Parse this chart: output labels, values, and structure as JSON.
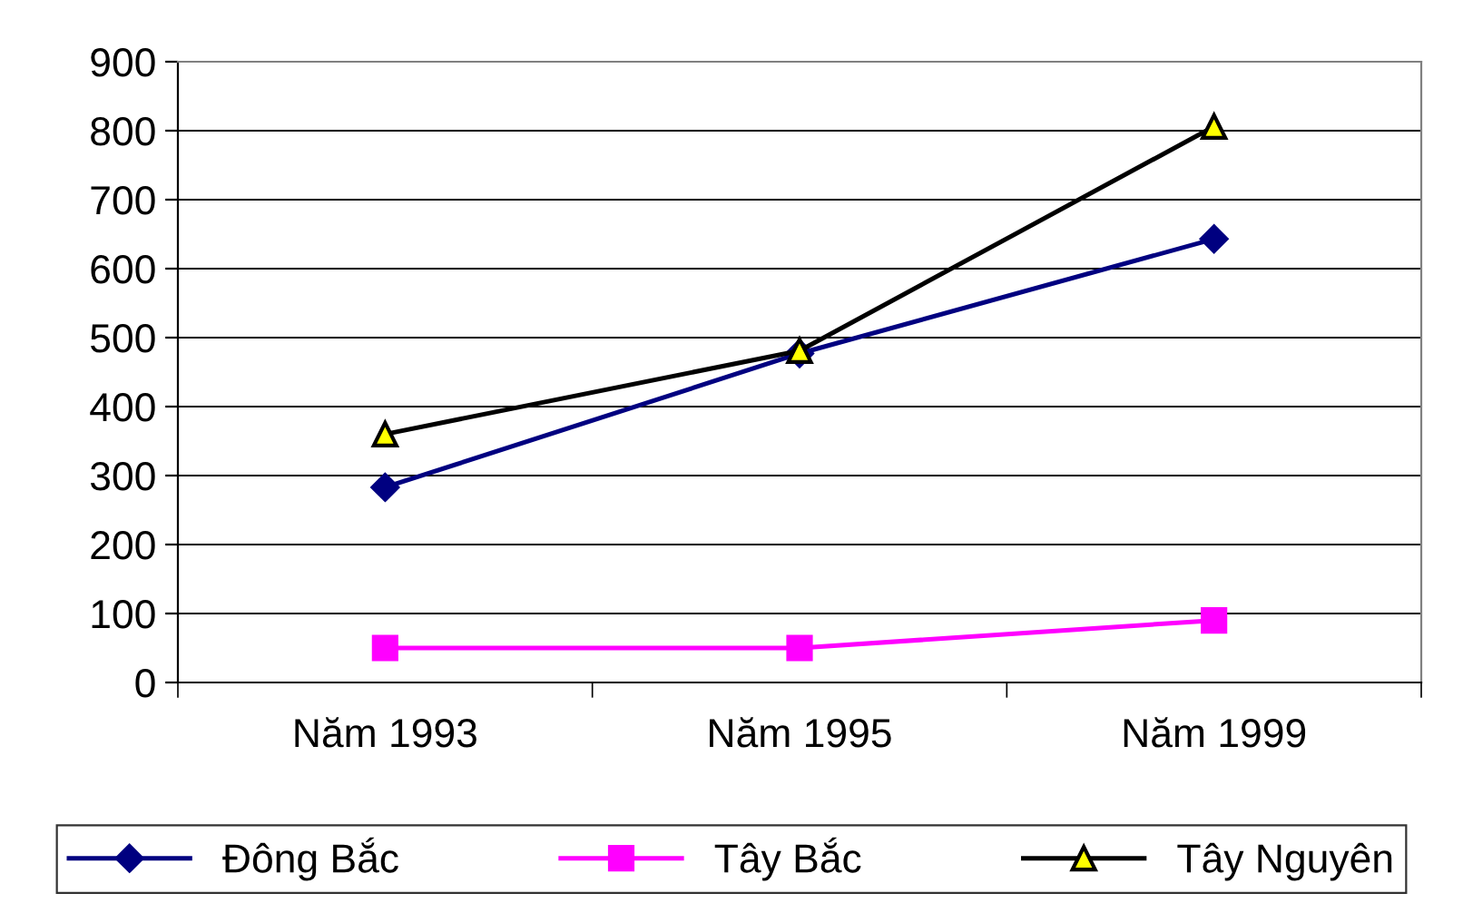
{
  "chart_data": {
    "type": "line",
    "categories": [
      "Năm 1993",
      "Năm 1995",
      "Năm 1999"
    ],
    "series": [
      {
        "name": "Đông Bắc",
        "color": "#000080",
        "marker": "diamond",
        "values": [
          283,
          477,
          643
        ]
      },
      {
        "name": "Tây Bắc",
        "color": "#ff00ff",
        "marker": "square",
        "values": [
          50,
          50,
          90
        ]
      },
      {
        "name": "Tây Nguyên",
        "color": "#000000",
        "marker": "triangle",
        "values": [
          360,
          481,
          806
        ]
      }
    ],
    "ylim": [
      0,
      900
    ],
    "yticks": [
      0,
      100,
      200,
      300,
      400,
      500,
      600,
      700,
      800,
      900
    ],
    "grid": "y",
    "legend": "bottom",
    "line_style": "solid"
  }
}
